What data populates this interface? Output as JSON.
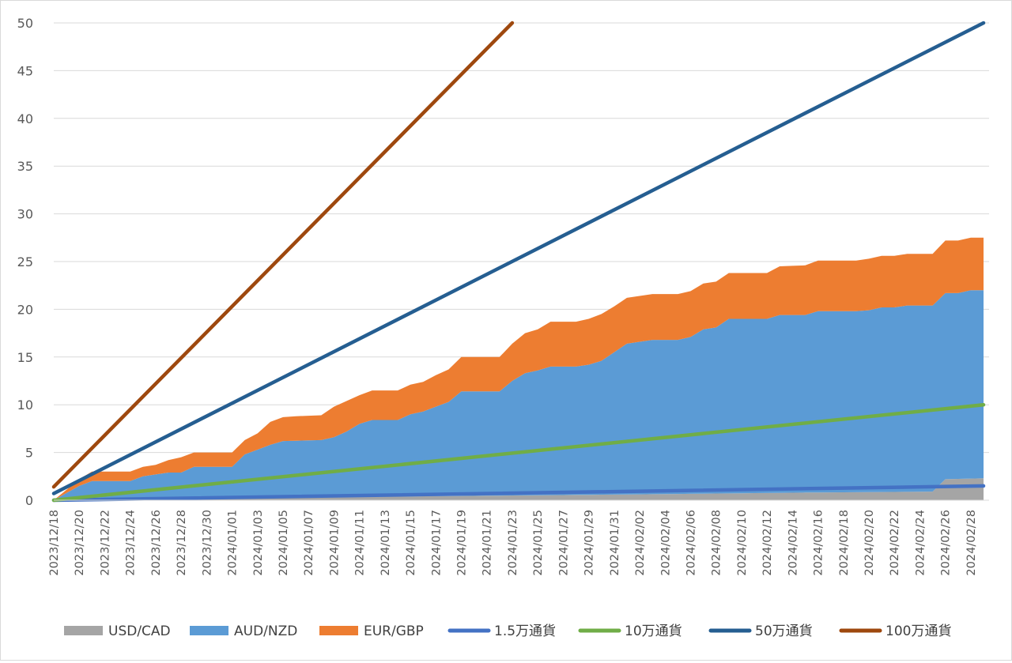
{
  "chart_data": {
    "type": "area",
    "ylim": [
      0,
      50
    ],
    "yticks": [
      0,
      5,
      10,
      15,
      20,
      25,
      30,
      35,
      40,
      45,
      50
    ],
    "grid": true,
    "legend_position": "bottom",
    "x_labels": [
      "2023/12/18",
      "2023/12/20",
      "2023/12/22",
      "2023/12/24",
      "2023/12/26",
      "2023/12/28",
      "2023/12/30",
      "2024/01/01",
      "2024/01/03",
      "2024/01/05",
      "2024/01/07",
      "2024/01/09",
      "2024/01/11",
      "2024/01/13",
      "2024/01/15",
      "2024/01/17",
      "2024/01/19",
      "2024/01/21",
      "2024/01/23",
      "2024/01/25",
      "2024/01/27",
      "2024/01/29",
      "2024/01/31",
      "2024/02/02",
      "2024/02/04",
      "2024/02/06",
      "2024/02/08",
      "2024/02/10",
      "2024/02/12",
      "2024/02/14",
      "2024/02/16",
      "2024/02/18",
      "2024/02/20",
      "2024/02/22",
      "2024/02/24",
      "2024/02/26",
      "2024/02/28"
    ],
    "x_start": "2023/12/18",
    "x_end": "2024/02/29",
    "stacked_area_series": [
      {
        "name": "USD/CAD",
        "color": "#a5a5a5",
        "points": [
          [
            "2023/12/18",
            0
          ],
          [
            "2024/01/01",
            0.2
          ],
          [
            "2024/01/15",
            0.4
          ],
          [
            "2024/02/01",
            0.6
          ],
          [
            "2024/02/15",
            0.8
          ],
          [
            "2024/02/25",
            0.9
          ],
          [
            "2024/02/26",
            2.2
          ],
          [
            "2024/02/29",
            2.3
          ]
        ]
      },
      {
        "name": "AUD/NZD",
        "color": "#5b9bd5",
        "points": [
          [
            "2023/12/18",
            0
          ],
          [
            "2023/12/20",
            1.5
          ],
          [
            "2023/12/21",
            2
          ],
          [
            "2023/12/24",
            2
          ],
          [
            "2023/12/25",
            2.5
          ],
          [
            "2023/12/27",
            2.9
          ],
          [
            "2023/12/28",
            2.9
          ],
          [
            "2023/12/29",
            3.5
          ],
          [
            "2024/01/01",
            3.5
          ],
          [
            "2024/01/02",
            4.8
          ],
          [
            "2024/01/03",
            5.3
          ],
          [
            "2024/01/04",
            5.8
          ],
          [
            "2024/01/05",
            6.2
          ],
          [
            "2024/01/08",
            6.3
          ],
          [
            "2024/01/09",
            6.6
          ],
          [
            "2024/01/10",
            7.2
          ],
          [
            "2024/01/11",
            8
          ],
          [
            "2024/01/12",
            8.4
          ],
          [
            "2024/01/14",
            8.4
          ],
          [
            "2024/01/15",
            9
          ],
          [
            "2024/01/16",
            9.3
          ],
          [
            "2024/01/17",
            9.8
          ],
          [
            "2024/01/18",
            10.3
          ],
          [
            "2024/01/19",
            11.4
          ],
          [
            "2024/01/22",
            11.4
          ],
          [
            "2024/01/23",
            12.5
          ],
          [
            "2024/01/24",
            13.3
          ],
          [
            "2024/01/25",
            13.6
          ],
          [
            "2024/01/26",
            14
          ],
          [
            "2024/01/28",
            14
          ],
          [
            "2024/01/29",
            14.2
          ],
          [
            "2024/01/30",
            14.6
          ],
          [
            "2024/01/31",
            15.5
          ],
          [
            "2024/02/01",
            16.4
          ],
          [
            "2024/02/02",
            16.6
          ],
          [
            "2024/02/03",
            16.8
          ],
          [
            "2024/02/05",
            16.8
          ],
          [
            "2024/02/06",
            17.1
          ],
          [
            "2024/02/07",
            17.9
          ],
          [
            "2024/02/08",
            18.1
          ],
          [
            "2024/02/09",
            19
          ],
          [
            "2024/02/12",
            19
          ],
          [
            "2024/02/13",
            19.4
          ],
          [
            "2024/02/15",
            19.4
          ],
          [
            "2024/02/16",
            19.8
          ],
          [
            "2024/02/19",
            19.8
          ],
          [
            "2024/02/20",
            19.9
          ],
          [
            "2024/02/21",
            20.2
          ],
          [
            "2024/02/22",
            20.2
          ],
          [
            "2024/02/23",
            20.4
          ],
          [
            "2024/02/25",
            20.4
          ],
          [
            "2024/02/26",
            21.7
          ],
          [
            "2024/02/27",
            21.7
          ],
          [
            "2024/02/28",
            22
          ],
          [
            "2024/02/29",
            22
          ]
        ]
      },
      {
        "name": "EUR/GBP",
        "color": "#ed7d31",
        "points": [
          [
            "2023/12/18",
            0
          ],
          [
            "2023/12/20",
            2.2
          ],
          [
            "2023/12/21",
            3
          ],
          [
            "2023/12/24",
            3
          ],
          [
            "2023/12/25",
            3.5
          ],
          [
            "2023/12/26",
            3.7
          ],
          [
            "2023/12/27",
            4.2
          ],
          [
            "2023/12/28",
            4.5
          ],
          [
            "2023/12/29",
            5
          ],
          [
            "2024/01/01",
            5
          ],
          [
            "2024/01/02",
            6.3
          ],
          [
            "2024/01/03",
            7
          ],
          [
            "2024/01/04",
            8.2
          ],
          [
            "2024/01/05",
            8.7
          ],
          [
            "2024/01/06",
            8.8
          ],
          [
            "2024/01/08",
            8.9
          ],
          [
            "2024/01/09",
            9.8
          ],
          [
            "2024/01/10",
            10.4
          ],
          [
            "2024/01/11",
            11
          ],
          [
            "2024/01/12",
            11.5
          ],
          [
            "2024/01/14",
            11.5
          ],
          [
            "2024/01/15",
            12.1
          ],
          [
            "2024/01/16",
            12.4
          ],
          [
            "2024/01/17",
            13.1
          ],
          [
            "2024/01/18",
            13.7
          ],
          [
            "2024/01/19",
            15
          ],
          [
            "2024/01/22",
            15
          ],
          [
            "2024/01/23",
            16.4
          ],
          [
            "2024/01/24",
            17.5
          ],
          [
            "2024/01/25",
            17.9
          ],
          [
            "2024/01/26",
            18.7
          ],
          [
            "2024/01/28",
            18.7
          ],
          [
            "2024/01/29",
            19
          ],
          [
            "2024/01/30",
            19.5
          ],
          [
            "2024/01/31",
            20.3
          ],
          [
            "2024/02/01",
            21.2
          ],
          [
            "2024/02/02",
            21.4
          ],
          [
            "2024/02/03",
            21.6
          ],
          [
            "2024/02/05",
            21.6
          ],
          [
            "2024/02/06",
            21.9
          ],
          [
            "2024/02/07",
            22.7
          ],
          [
            "2024/02/08",
            22.9
          ],
          [
            "2024/02/09",
            23.8
          ],
          [
            "2024/02/12",
            23.8
          ],
          [
            "2024/02/13",
            24.5
          ],
          [
            "2024/02/15",
            24.6
          ],
          [
            "2024/02/16",
            25.1
          ],
          [
            "2024/02/19",
            25.1
          ],
          [
            "2024/02/20",
            25.3
          ],
          [
            "2024/02/21",
            25.6
          ],
          [
            "2024/02/22",
            25.6
          ],
          [
            "2024/02/23",
            25.8
          ],
          [
            "2024/02/25",
            25.8
          ],
          [
            "2024/02/26",
            27.2
          ],
          [
            "2024/02/27",
            27.2
          ],
          [
            "2024/02/28",
            27.5
          ],
          [
            "2024/02/29",
            27.5
          ]
        ]
      }
    ],
    "line_series": [
      {
        "name": "1.5万通貨",
        "color": "#4472c4",
        "points": [
          [
            "2023/12/18",
            0
          ],
          [
            "2024/02/29",
            1.5
          ]
        ]
      },
      {
        "name": "10万通貨",
        "color": "#70ad47",
        "points": [
          [
            "2023/12/18",
            0
          ],
          [
            "2024/02/29",
            10
          ]
        ]
      },
      {
        "name": "50万通貨",
        "color": "#255e91",
        "points": [
          [
            "2023/12/18",
            0.7
          ],
          [
            "2024/02/29",
            50
          ]
        ]
      },
      {
        "name": "100万通貨",
        "color": "#9e480e",
        "points": [
          [
            "2023/12/18",
            1.4
          ],
          [
            "2024/01/23",
            50
          ]
        ]
      }
    ]
  }
}
